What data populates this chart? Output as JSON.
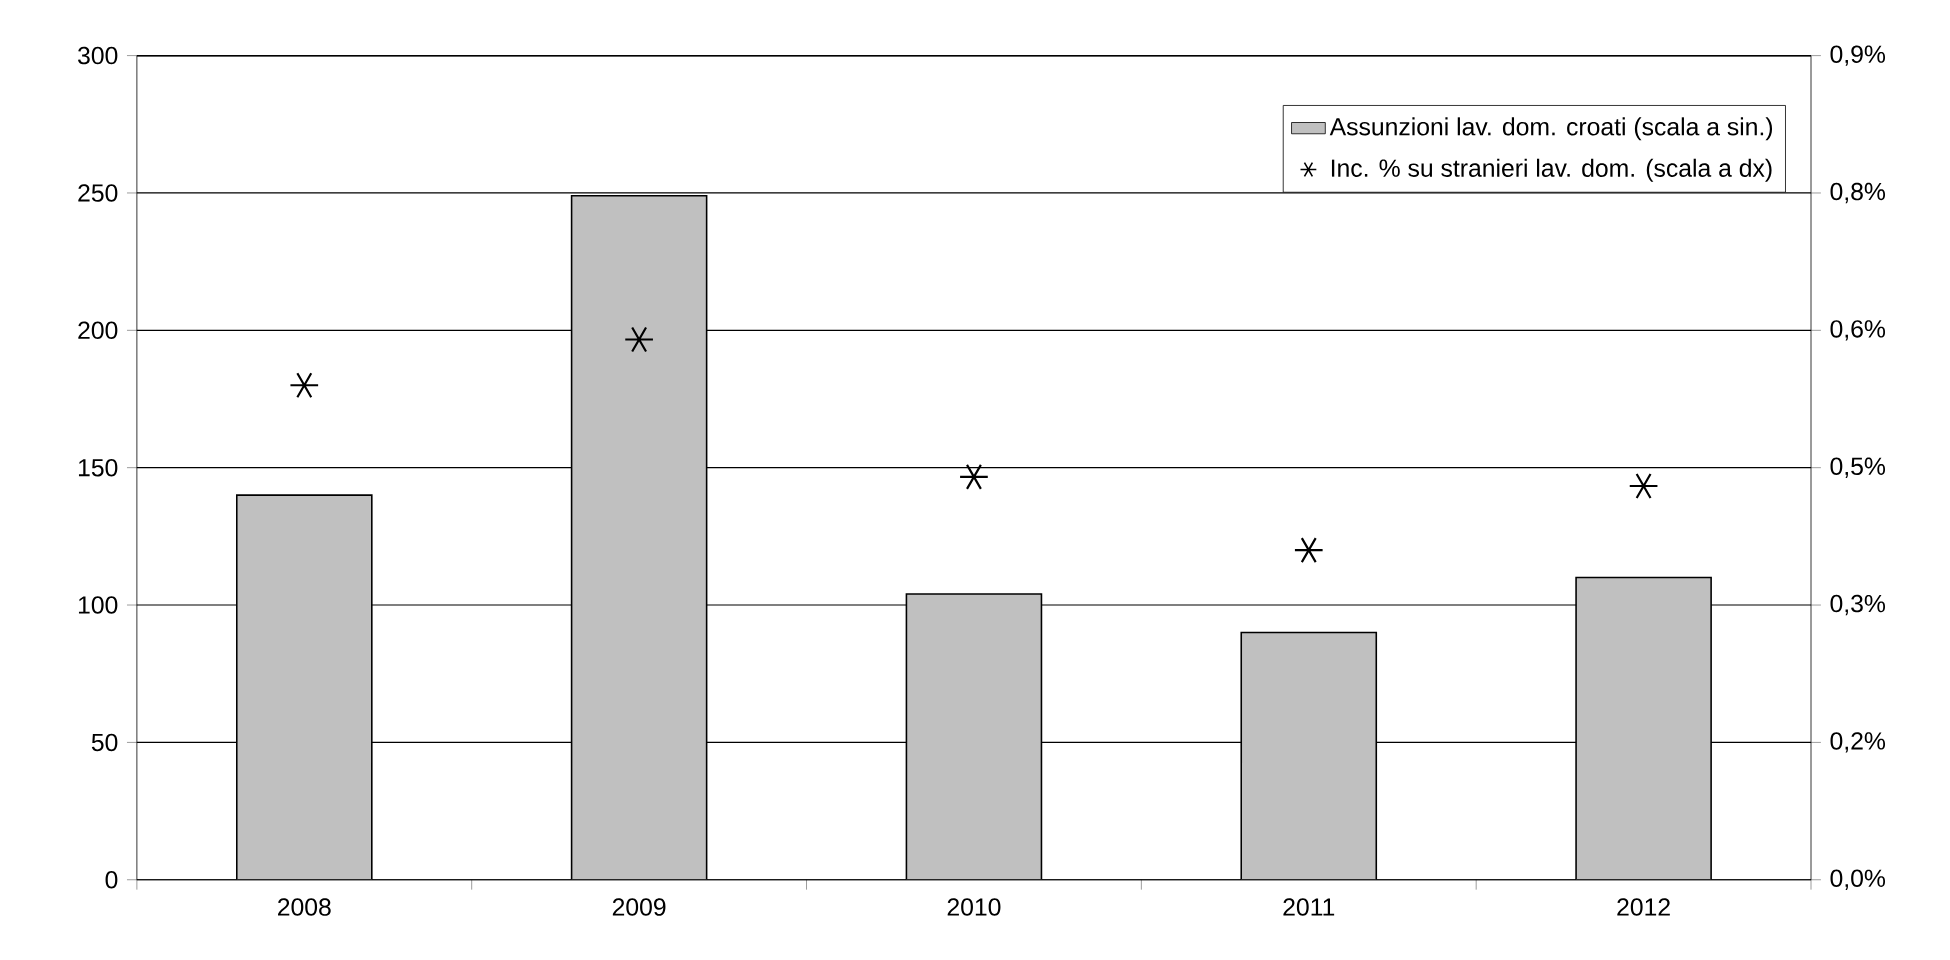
{
  "chart_data": {
    "type": "bar",
    "categories": [
      "2008",
      "2009",
      "2010",
      "2011",
      "2012"
    ],
    "series": [
      {
        "name": "Assunzioni lav. dom. croati (scala a sin.)",
        "color": "#c0c0c0",
        "values": [
          140,
          249,
          104,
          90,
          110
        ]
      },
      {
        "name": "Inc. % su stranieri lav. dom. (scala a dx)",
        "type": "scatter",
        "axis": "y2",
        "marker": "cross",
        "color": "#000000",
        "values": [
          0.54,
          0.59,
          0.44,
          0.36,
          0.43
        ]
      }
    ],
    "ylim": [
      0,
      300
    ],
    "yticks": [
      0,
      50,
      100,
      150,
      200,
      250,
      300
    ],
    "y2lim": [
      0,
      0.9
    ],
    "y2ticks": [
      {
        "value": 0,
        "label": "0,0%"
      },
      {
        "value": 0.15,
        "label": "0,2%"
      },
      {
        "value": 0.3,
        "label": "0,3%"
      },
      {
        "value": 0.45,
        "label": "0,5%"
      },
      {
        "value": 0.6,
        "label": "0,6%"
      },
      {
        "value": 0.75,
        "label": "0,8%"
      },
      {
        "value": 0.9,
        "label": "0,9%"
      }
    ],
    "grid": "y",
    "legend": "top right"
  }
}
